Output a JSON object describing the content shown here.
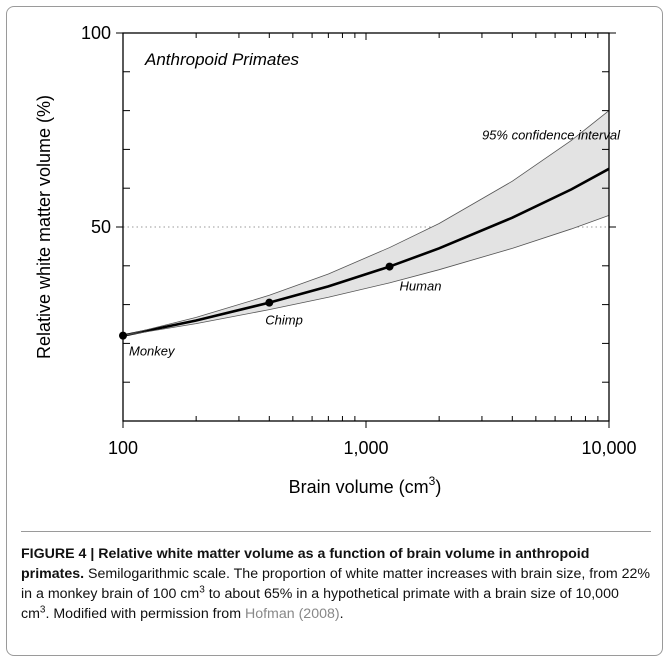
{
  "chart_data": {
    "type": "line",
    "title": "Anthropoid Primates",
    "ylabel": "Relative white matter volume (%)",
    "xlabel": [
      "Brain volume (cm",
      "3",
      ")"
    ],
    "xscale": "log",
    "xlim": [
      100,
      10000
    ],
    "xticks": [
      100,
      {
        "value": 1000,
        "label": "1,000"
      },
      {
        "value": 10000,
        "label": "10,000"
      }
    ],
    "xminor": [
      200,
      300,
      400,
      500,
      600,
      700,
      800,
      900,
      2000,
      3000,
      4000,
      5000,
      6000,
      7000,
      8000,
      9000
    ],
    "ylim": [
      0,
      100
    ],
    "yticks": [
      50,
      100
    ],
    "yminor": [
      10,
      20,
      30,
      40,
      60,
      70,
      80,
      90
    ],
    "reference_line": 50,
    "x": [
      100,
      200,
      400,
      700,
      1250,
      2000,
      4000,
      7000,
      10000
    ],
    "series": [
      {
        "name": "fit",
        "color": "#000000",
        "values": [
          22,
          25.9,
          30.5,
          34.7,
          39.8,
          44.5,
          52.4,
          59.7,
          65
        ]
      },
      {
        "name": "upper",
        "color": "#555555",
        "values": [
          22,
          26.7,
          32.4,
          37.9,
          44.7,
          50.9,
          61.8,
          72.3,
          80
        ]
      },
      {
        "name": "lower",
        "color": "#555555",
        "values": [
          22,
          25.1,
          28.7,
          31.9,
          35.6,
          39.0,
          44.5,
          49.5,
          53
        ]
      }
    ],
    "band_color": "#e3e3e3",
    "band_label": "95% confidence interval",
    "points": [
      {
        "label": "Monkey",
        "x": 100,
        "y": 22
      },
      {
        "label": "Chimp",
        "x": 400,
        "y": 30.5
      },
      {
        "label": "Human",
        "x": 1250,
        "y": 39.8
      }
    ]
  },
  "caption": {
    "title": "FIGURE 4 | Relative white matter volume as a function of brain volume in anthropoid primates.",
    "body": [
      " Semilogarithmic scale. The proportion of white matter increases with brain size, from 22% in a monkey brain of 100 cm",
      "3",
      " to about 65% in a hypothetical primate with a brain size of 10,000 cm",
      "3",
      ". Modified with permission from ",
      "Hofman (2008)",
      "."
    ]
  }
}
